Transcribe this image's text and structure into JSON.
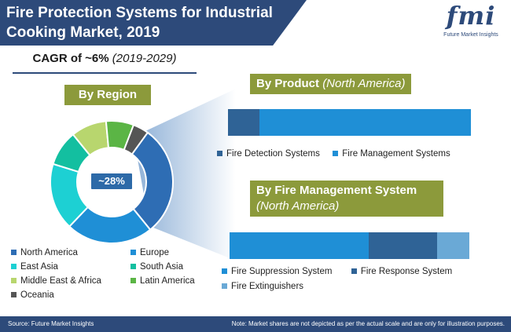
{
  "header": {
    "title_line1": "Fire Protection Systems for Industrial",
    "title_line2": "Cooking Market, 2019"
  },
  "logo": {
    "text": "fmi",
    "subtitle": "Future Market Insights"
  },
  "cagr": {
    "label": "CAGR of ~6%",
    "period": "(2019-2029)"
  },
  "colors": {
    "header_bg": "#2d4a7a",
    "label_bg": "#8c9a3b",
    "north_america": "#2e6db4",
    "europe": "#1f8fd6",
    "east_asia": "#1dd0d3",
    "south_asia": "#13bfa0",
    "middle_east_africa": "#b8d66e",
    "latin_america": "#5bb545",
    "oceania": "#555555",
    "fire_detection": "#2f6396",
    "fire_management": "#1f8fd6",
    "fire_suppression": "#1f8fd6",
    "fire_response": "#2f6396",
    "fire_extinguishers": "#6aa9d6"
  },
  "chart_data": [
    {
      "type": "pie",
      "title": "By Region",
      "callout": "~28%",
      "categories": [
        "North America",
        "Europe",
        "East Asia",
        "South Asia",
        "Middle East & Africa",
        "Latin America",
        "Oceania"
      ],
      "values": [
        28,
        22,
        17,
        9,
        9,
        7,
        4
      ],
      "legend": [
        {
          "label": "North America",
          "color": "#2e6db4"
        },
        {
          "label": "Europe",
          "color": "#1f8fd6"
        },
        {
          "label": "East Asia",
          "color": "#1dd0d3"
        },
        {
          "label": "South Asia",
          "color": "#13bfa0"
        },
        {
          "label": "Middle East & Africa",
          "color": "#b8d66e"
        },
        {
          "label": "Latin America",
          "color": "#5bb545"
        },
        {
          "label": "Oceania",
          "color": "#555555"
        }
      ]
    },
    {
      "type": "bar",
      "title": "By Product",
      "subtitle": "(North America)",
      "series": [
        {
          "name": "Fire Detection Systems",
          "value": 13
        },
        {
          "name": "Fire Management Systems",
          "value": 87
        }
      ]
    },
    {
      "type": "bar",
      "title": "By Fire Management System",
      "subtitle": "(North America)",
      "series": [
        {
          "name": "Fire Suppression System",
          "value": 65
        },
        {
          "name": "Fire Response System",
          "value": 32
        },
        {
          "name": "Fire Extinguishers",
          "value": 15
        }
      ]
    }
  ],
  "footer": {
    "source": "Source: Future Market Insights",
    "note": "Note: Market shares are not depicted as per the actual scale and are only for illustration purposes."
  }
}
